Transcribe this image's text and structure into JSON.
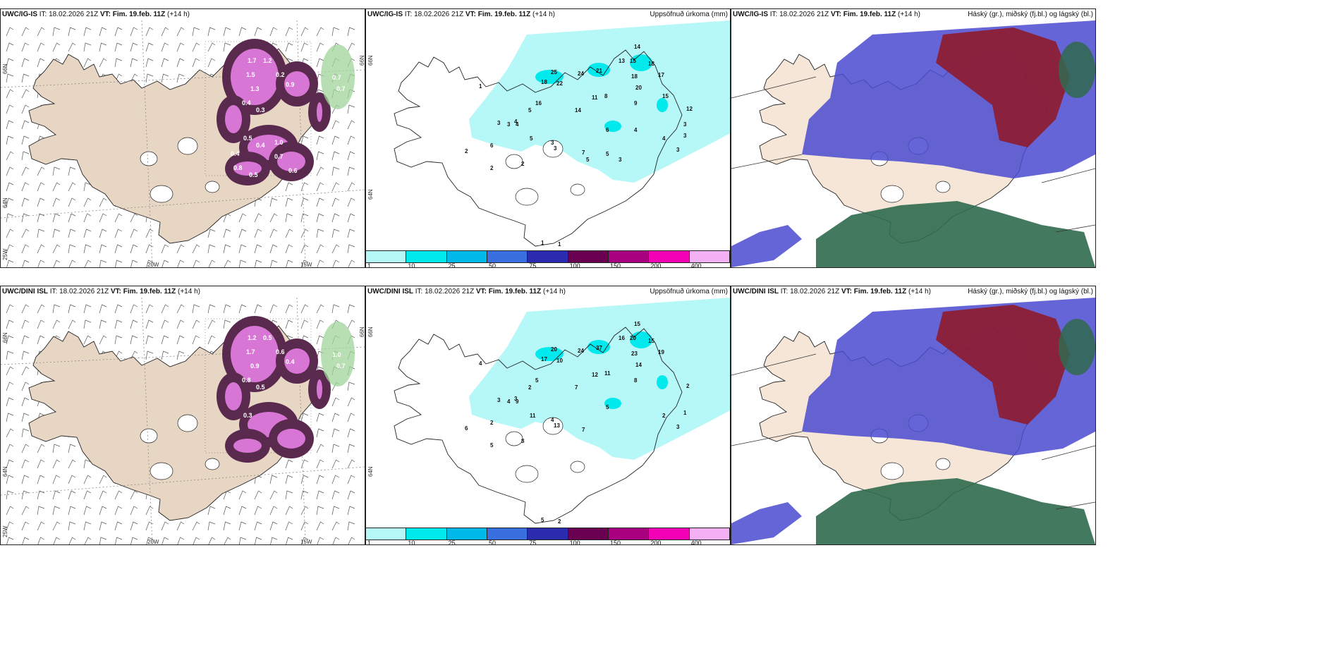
{
  "rows": [
    {
      "model": "UWC/IG-IS",
      "it_label": "IT:",
      "it_value": "18.02.2026 21Z",
      "vt_label": "VT:",
      "vt_value": "Fim. 19.feb. 11Z",
      "lead": "(+14 h)",
      "precip_title": "Uppsöfnuð úrkoma (mm)",
      "cloud_title": "Háský (gr.), miðský (fj.bl.) og lágský (bl.)",
      "snow_values": [
        "1.7",
        "1.2",
        "1.5",
        "1.3",
        "0.2",
        "0.9",
        "0.7",
        "0.7",
        "0.8",
        "0.4",
        "0.3",
        "0.5",
        "0.4",
        "0.7",
        "0.6",
        "0.8",
        "0.5",
        "0.4",
        "1.0"
      ],
      "precip_values": [
        "14",
        "13",
        "15",
        "18",
        "18",
        "17",
        "25",
        "24",
        "21",
        "18",
        "22",
        "20",
        "11",
        "8",
        "9",
        "14",
        "16",
        "3",
        "6",
        "4",
        "5",
        "2",
        "2",
        "3",
        "5",
        "3",
        "7",
        "12",
        "3",
        "4",
        "3",
        "1",
        "1",
        "1",
        "3",
        "2",
        "4",
        "6",
        "5",
        "5",
        "4",
        "15",
        "3",
        "3"
      ]
    },
    {
      "model": "UWC/DINI ISL",
      "it_label": "IT:",
      "it_value": "18.02.2026 21Z",
      "vt_label": "VT:",
      "vt_value": "Fim. 19.feb. 11Z",
      "lead": "(+14 h)",
      "precip_title": "Uppsöfnuð úrkoma (mm)",
      "cloud_title": "Háský (gr.), miðský (fj.bl.) og lágský (bl.)",
      "snow_values": [
        "1.2",
        "0.5",
        "1.7",
        "0.9",
        "0.6",
        "0.4",
        "1.0",
        "0.7",
        "1.2",
        "0.8",
        "0.5",
        "0.3"
      ],
      "precip_values": [
        "15",
        "16",
        "20",
        "23",
        "15",
        "19",
        "20",
        "24",
        "37",
        "17",
        "10",
        "14",
        "12",
        "11",
        "8",
        "7",
        "5",
        "3",
        "2",
        "3",
        "2",
        "6",
        "5",
        "4",
        "11",
        "4",
        "7",
        "2",
        "1",
        "2",
        "3",
        "4",
        "5",
        "2",
        "13",
        "8",
        "9",
        "5"
      ]
    }
  ],
  "legend": {
    "colors": [
      "#b6f7f7",
      "#00e9ec",
      "#00b9e8",
      "#3a6fe0",
      "#2b2bb0",
      "#6a0050",
      "#a8007e",
      "#f200b4",
      "#f4b0f4"
    ],
    "labels": [
      "1",
      "10",
      "25",
      "50",
      "75",
      "100",
      "150",
      "200",
      "400"
    ]
  },
  "axes": {
    "lat_top": "66N",
    "lat_mid": "64N",
    "lon_left": "25W",
    "lon_a": "20W",
    "lon_b": "15W"
  },
  "colors": {
    "land": "#f5e6d8",
    "land_dark": "#e8d6c4",
    "snow_dark": "#5a2a4e",
    "snow_mid": "#9a3a8a",
    "snow_light": "#e67ee4",
    "rain_green": "#9fd49a",
    "precip_light": "#b6f7f7",
    "precip_mid": "#00e9ec",
    "cloud_high": "#8e1b2e",
    "cloud_mid": "#2f6a4e",
    "cloud_low": "#4a4ad0"
  }
}
